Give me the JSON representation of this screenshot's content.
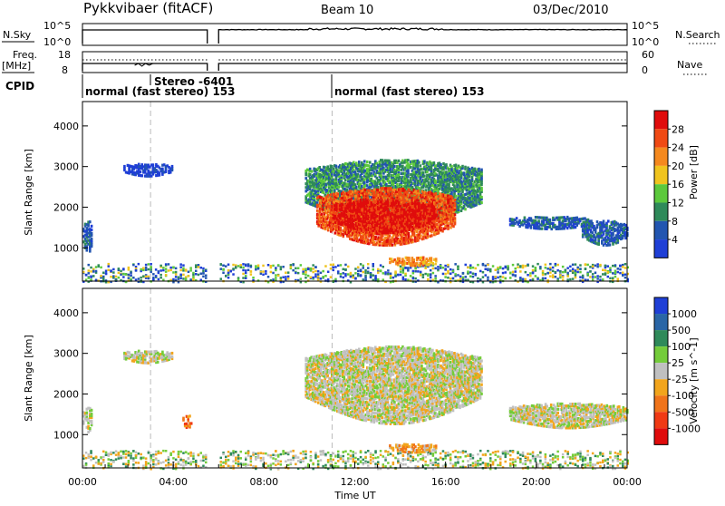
{
  "header": {
    "station": "Pykkvibaer (fitACF)",
    "beam": "Beam 10",
    "date": "03/Dec/2010"
  },
  "top_panels": {
    "nsky_label": "N.Sky",
    "nsearch_label": "N.Search",
    "nsky_ticks": [
      "10^5",
      "10^0"
    ],
    "nsearch_ticks": [
      "10^5",
      "10^0"
    ],
    "freq_label_1": "Freq.",
    "freq_label_2": "[MHz]",
    "freq_ticks": [
      "18",
      "8"
    ],
    "nave_label": "Nave",
    "nave_ticks": [
      "60",
      "0"
    ],
    "cpid_label": "CPID",
    "cpid_segments": [
      {
        "text": "normal (fast stereo) 153",
        "start_hour": 0
      },
      {
        "text": "Stereo -6401",
        "start_hour": 5.1
      },
      {
        "text": "normal (fast stereo) 153",
        "start_hour": 11
      }
    ],
    "gap_hours": [
      5.5,
      6.0
    ]
  },
  "chart_data": [
    {
      "type": "heatmap",
      "name": "power",
      "ylabel": "Slant Range [km]",
      "yticks": [
        1000,
        2000,
        3000,
        4000
      ],
      "ylim": [
        180,
        4600
      ],
      "xlim_hours": [
        0,
        24
      ],
      "colorbar": {
        "label": "Power [dB]",
        "ticks": [
          "4",
          "8",
          "12",
          "16",
          "20",
          "24",
          "28"
        ],
        "colors": [
          "#1f3fd6",
          "#2255b0",
          "#2f8a5a",
          "#5cc93c",
          "#f0c41e",
          "#f5891e",
          "#f04a14",
          "#e00c0c"
        ]
      },
      "echo_regions": [
        {
          "t0": 0.0,
          "t1": 0.4,
          "r0": 900,
          "r1": 1700,
          "level": 1
        },
        {
          "t0": 1.8,
          "t1": 3.9,
          "r0": 2800,
          "r1": 3100,
          "level": 0
        },
        {
          "t0": 9.8,
          "t1": 17.6,
          "r0": 1600,
          "r1": 3200,
          "level": 2
        },
        {
          "t0": 10.3,
          "t1": 16.4,
          "r0": 1100,
          "r1": 2500,
          "level": 6
        },
        {
          "t0": 11.0,
          "t1": 15.5,
          "r0": 1400,
          "r1": 2200,
          "level": 7
        },
        {
          "t0": 18.8,
          "t1": 22.4,
          "r0": 1500,
          "r1": 1800,
          "level": 1
        },
        {
          "t0": 22.0,
          "t1": 24.0,
          "r0": 1100,
          "r1": 1700,
          "level": 1
        },
        {
          "t0": 13.5,
          "t1": 15.6,
          "r0": 600,
          "r1": 800,
          "level": 5
        }
      ]
    },
    {
      "type": "heatmap",
      "name": "velocity",
      "ylabel": "Slant Range [km]",
      "yticks": [
        1000,
        2000,
        3000,
        4000
      ],
      "ylim": [
        180,
        4600
      ],
      "xlim_hours": [
        0,
        24
      ],
      "xticks": [
        "00:00",
        "04:00",
        "08:00",
        "12:00",
        "16:00",
        "20:00",
        "00:00"
      ],
      "xlabel": "Time UT",
      "colorbar": {
        "label": "Velocity [m s^-1]",
        "ticks": [
          "1000",
          "500",
          "100",
          "25",
          "-25",
          "-100",
          "-500",
          "-1000"
        ],
        "colors": [
          "#1f3fd6",
          "#2a66a6",
          "#2f8a5a",
          "#74cc3a",
          "#c0c0c0",
          "#f2a51c",
          "#f0741a",
          "#f03a14",
          "#e00c0c"
        ]
      },
      "echo_regions": [
        {
          "t0": 0.0,
          "t1": 0.4,
          "r0": 1100,
          "r1": 1700,
          "level": 4
        },
        {
          "t0": 1.8,
          "t1": 3.9,
          "r0": 2800,
          "r1": 3100,
          "level": 4
        },
        {
          "t0": 9.8,
          "t1": 17.6,
          "r0": 1300,
          "r1": 3200,
          "level": 4
        },
        {
          "t0": 18.8,
          "t1": 24.0,
          "r0": 1200,
          "r1": 1800,
          "level": 4
        },
        {
          "t0": 4.4,
          "t1": 4.8,
          "r0": 1200,
          "r1": 1500,
          "level": 6
        },
        {
          "t0": 13.5,
          "t1": 15.6,
          "r0": 600,
          "r1": 800,
          "level": 5
        }
      ]
    }
  ]
}
